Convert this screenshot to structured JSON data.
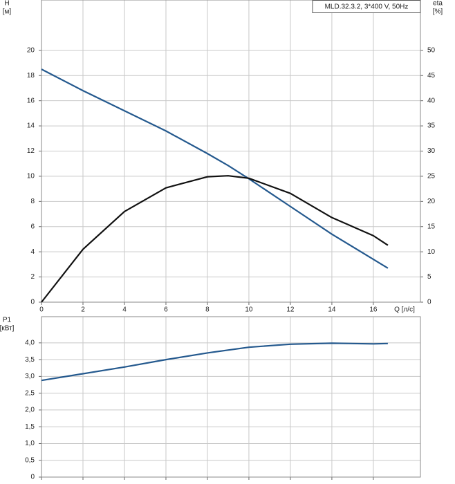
{
  "chart_data": [
    {
      "type": "line",
      "annotation": "MLD.32.3.2, 3*400 V, 50Hz",
      "ylabel": "H",
      "ylabel_unit": "[м]",
      "y2label": "eta",
      "y2label_unit": "[%]",
      "xlabel": "Q [л/с]",
      "x": [
        0,
        2,
        4,
        6,
        8,
        9,
        10,
        12,
        14,
        16,
        16.7
      ],
      "series": [
        {
          "name": "H",
          "color": "#24598e",
          "values": [
            18.5,
            16.8,
            15.2,
            13.6,
            11.8,
            10.85,
            9.8,
            7.6,
            5.4,
            3.4,
            2.7
          ]
        },
        {
          "name": "eta",
          "color": "#111111",
          "axis": "y2",
          "values": [
            0,
            10.5,
            18,
            22.7,
            24.9,
            25.1,
            24.6,
            21.6,
            16.8,
            13.2,
            11.3
          ]
        }
      ],
      "xlim": [
        0,
        18.27
      ],
      "xticks": [
        0,
        2,
        4,
        6,
        8,
        10,
        12,
        14,
        16
      ],
      "ylim": [
        0,
        24
      ],
      "yticks": [
        0,
        2,
        4,
        6,
        8,
        10,
        12,
        14,
        16,
        18,
        20
      ],
      "y2lim": [
        0,
        60
      ],
      "y2ticks": [
        0,
        5,
        10,
        15,
        20,
        25,
        30,
        35,
        40,
        45,
        50
      ],
      "grid": true,
      "xtick_labels": true
    },
    {
      "type": "line",
      "ylabel": "P1",
      "ylabel_unit": "[кВт]",
      "x": [
        0,
        2,
        4,
        6,
        8,
        10,
        12,
        14,
        16,
        16.7
      ],
      "series": [
        {
          "color": "#24598e",
          "values": [
            2.88,
            3.08,
            3.28,
            3.5,
            3.7,
            3.87,
            3.96,
            3.99,
            3.97,
            3.98
          ]
        }
      ],
      "xlim": [
        0,
        18.27
      ],
      "xticks": [
        0,
        2,
        4,
        6,
        8,
        10,
        12,
        14,
        16
      ],
      "ylim": [
        0,
        4.78
      ],
      "yticks": [
        0,
        {
          "value": 0.5,
          "label": "0,5"
        },
        {
          "value": 1,
          "label": "1,0"
        },
        {
          "value": 1.5,
          "label": "1,5"
        },
        {
          "value": 2,
          "label": "2,0"
        },
        {
          "value": 2.5,
          "label": "2,5"
        },
        {
          "value": 3,
          "label": "3,0"
        },
        {
          "value": 3.5,
          "label": "3,5"
        },
        {
          "value": 4,
          "label": "4,0"
        }
      ],
      "grid": true,
      "xtick_labels": false
    }
  ]
}
